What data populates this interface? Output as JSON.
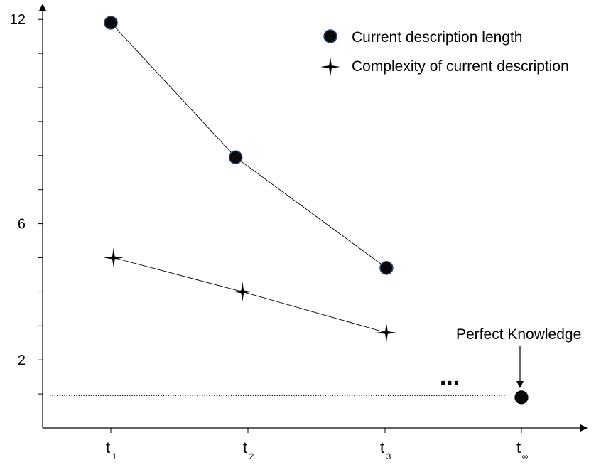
{
  "chart_data": {
    "type": "line",
    "title": "",
    "xlabel": "",
    "ylabel": "",
    "x_ticks": [
      {
        "main": "t",
        "sub": "1"
      },
      {
        "main": "t",
        "sub": "2"
      },
      {
        "main": "t",
        "sub": "3"
      },
      {
        "main": "t",
        "sub": "∞"
      }
    ],
    "y_tick_labels": [
      "12",
      "6",
      "2"
    ],
    "y_labeled_ticks": [
      12,
      6,
      2
    ],
    "y_minor_ticks": [
      11,
      10,
      9,
      8,
      7,
      5,
      4,
      3,
      1
    ],
    "ylim": [
      0,
      12.5
    ],
    "grid": false,
    "legend_position": "top-right",
    "series": [
      {
        "name": "Current description length",
        "marker": "circle",
        "x": [
          1,
          1.91,
          3.01
        ],
        "values": [
          11.9,
          7.95,
          4.7
        ]
      },
      {
        "name": "Complexity of current description",
        "marker": "star",
        "x": [
          1.02,
          1.96,
          3.01
        ],
        "values": [
          5.0,
          4.0,
          2.8
        ]
      }
    ],
    "limit_point": {
      "x": 4,
      "value": 0.9
    },
    "limit_line_value": 0.95,
    "ellipsis": "...",
    "annotation": "Perfect Knowledge",
    "colors": {
      "marker_fill": "#0a0a0a",
      "marker_stroke": "#2f4a78",
      "line": "#000000"
    }
  }
}
